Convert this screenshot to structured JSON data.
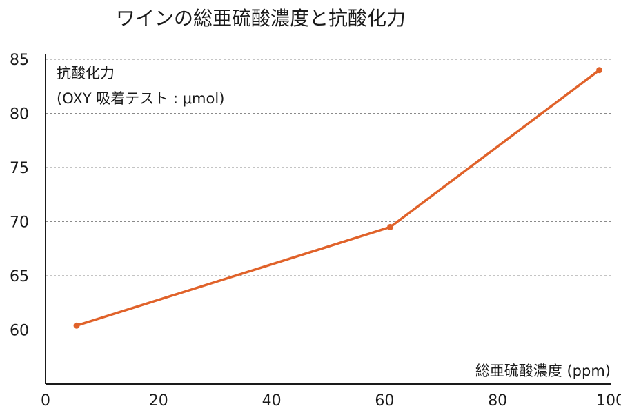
{
  "chart_data": {
    "type": "line",
    "title": "ワインの総亜硫酸濃度と抗酸化力",
    "ylabel_line1": "抗酸化力",
    "ylabel_line2": "(OXY 吸着テスト : μmol)",
    "xlabel": "総亜硫酸濃度 (ppm)",
    "xlim": [
      0,
      100
    ],
    "ylim": [
      55,
      85
    ],
    "x_ticks": [
      0,
      20,
      40,
      60,
      80,
      100
    ],
    "y_ticks": [
      60,
      65,
      70,
      75,
      80,
      85
    ],
    "grid": "horizontal dashed",
    "line_color": "#e0622a",
    "series": [
      {
        "x": [
          5.5,
          61,
          98
        ],
        "y": [
          60.4,
          69.5,
          84
        ]
      }
    ]
  }
}
